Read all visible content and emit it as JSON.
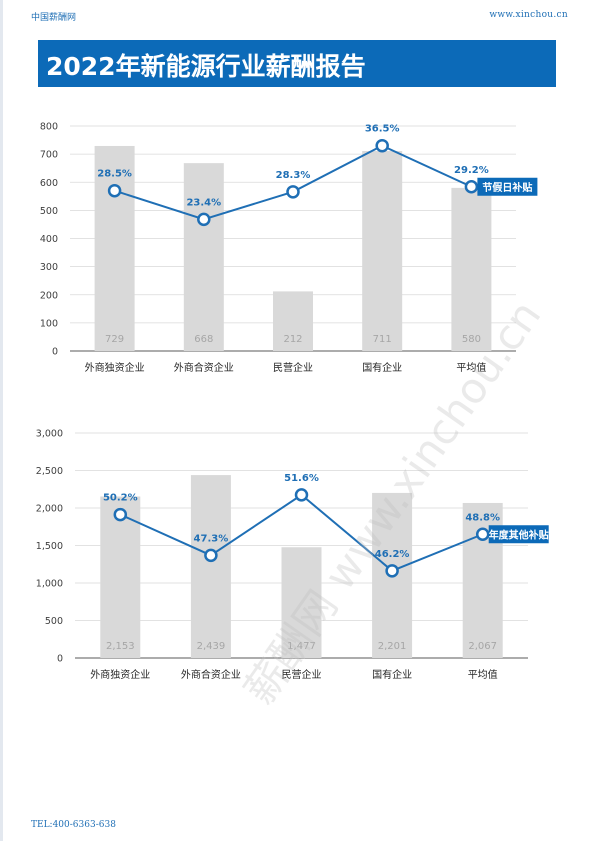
{
  "header": {
    "site_name": "中国薪酬网",
    "site_url": "www.xinchou.cn"
  },
  "banner": {
    "title": "2022年新能源行业薪酬报告"
  },
  "footer": {
    "phone": "TEL:400-6363-638"
  },
  "watermark": {
    "text": "薪酬网 www.xinchou.cn"
  },
  "colors": {
    "accent": "#0c6ab8",
    "bar": "#d9d9d9",
    "line": "#1f6fb5",
    "bar_label": "#a6a6a6"
  },
  "chart_data": [
    {
      "type": "bar",
      "categories": [
        "外商独资企业",
        "外商合资企业",
        "民营企业",
        "国有企业",
        "平均值"
      ],
      "series": [
        {
          "values": [
            729,
            668,
            212,
            711,
            580
          ]
        },
        {
          "values": [
            28.5,
            23.4,
            28.3,
            36.5,
            29.2
          ],
          "labels": [
            "28.5%",
            "23.4%",
            "28.3%",
            "36.5%",
            "29.2%"
          ]
        }
      ],
      "bar_labels": [
        "729",
        "668",
        "212",
        "711",
        "580"
      ],
      "y_ticks": [
        "0",
        "100",
        "200",
        "300",
        "400",
        "500",
        "600",
        "700",
        "800"
      ],
      "ylim": [
        0,
        800
      ],
      "line_ylim": [
        0,
        40
      ],
      "tag": "节假日补贴",
      "grid": true
    },
    {
      "type": "bar",
      "categories": [
        "外商独资企业",
        "外商合资企业",
        "民营企业",
        "国有企业",
        "平均值"
      ],
      "series": [
        {
          "values": [
            2153,
            2439,
            1477,
            2201,
            2067
          ]
        },
        {
          "values": [
            50.2,
            47.3,
            51.6,
            46.2,
            48.8
          ],
          "labels": [
            "50.2%",
            "47.3%",
            "51.6%",
            "46.2%",
            "48.8%"
          ]
        }
      ],
      "bar_labels": [
        "2,153",
        "2,439",
        "1,477",
        "2,201",
        "2,067"
      ],
      "y_ticks": [
        "0",
        "500",
        "1,000",
        "1,500",
        "2,000",
        "2,500",
        "3,000"
      ],
      "ylim": [
        0,
        3000
      ],
      "line_ylim": [
        40,
        56
      ],
      "tag": "年度其他补贴",
      "grid": true
    }
  ]
}
